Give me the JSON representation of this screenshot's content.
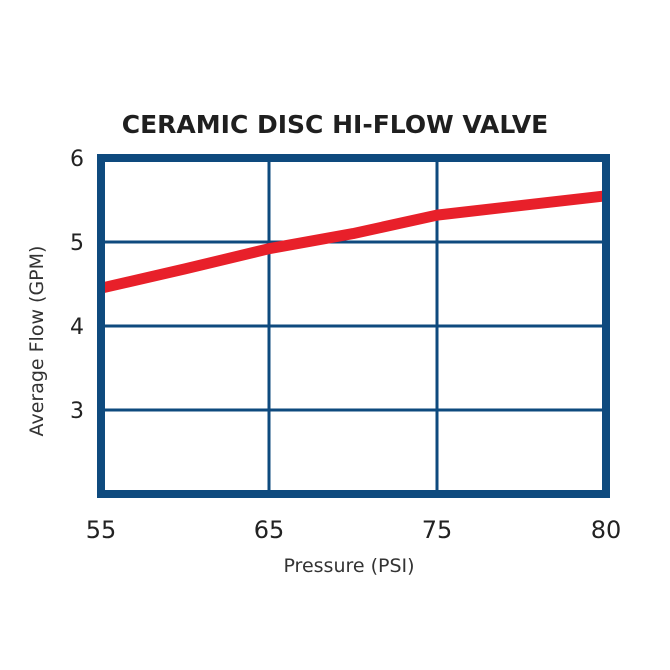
{
  "chart_data": {
    "type": "line",
    "title": "CERAMIC DISC HI-FLOW VALVE",
    "xlabel": "Pressure (PSI)",
    "ylabel": "Average Flow (GPM)",
    "x_ticks": [
      "55",
      "65",
      "75",
      "80"
    ],
    "y_ticks": [
      "6",
      "5",
      "4",
      "3"
    ],
    "ylim": [
      2,
      6
    ],
    "grid": true,
    "colors": {
      "frame": "#0e4a7e",
      "line": "#e8202a"
    },
    "series": [
      {
        "x": [
          55,
          60,
          65,
          70,
          75,
          80
        ],
        "y": [
          4.45,
          4.68,
          4.92,
          5.1,
          5.32,
          5.55
        ]
      }
    ]
  }
}
